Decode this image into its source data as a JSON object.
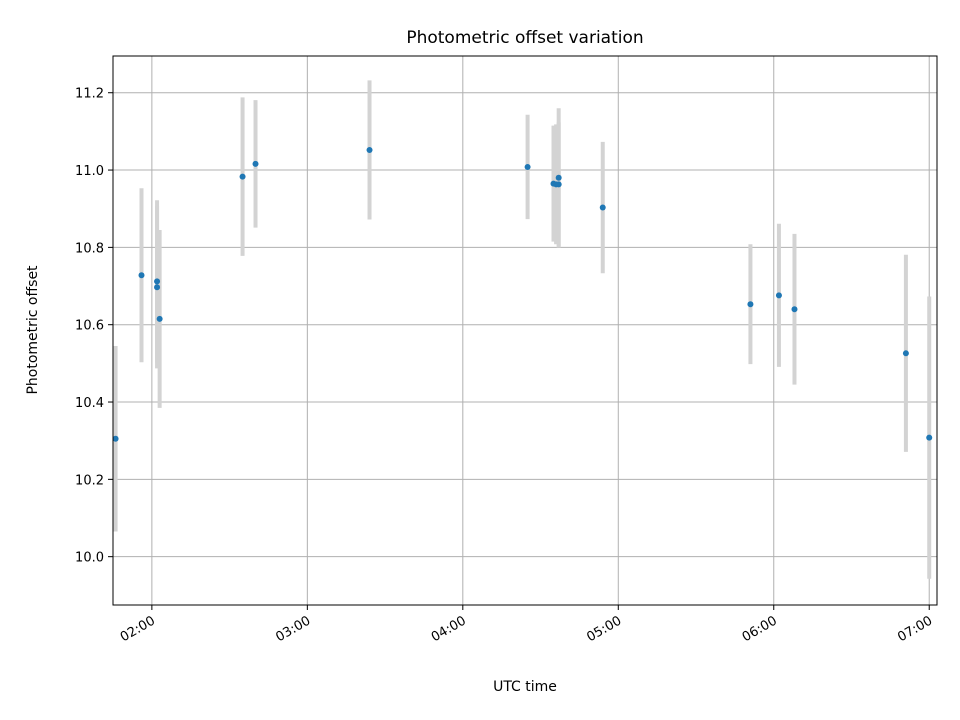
{
  "chart_data": {
    "type": "scatter",
    "title": "Photometric offset variation",
    "xlabel": "UTC time",
    "ylabel": "Photometric offset",
    "x_unit": "time (HH:MM UTC)",
    "xlim": [
      "01:45",
      "07:03"
    ],
    "ylim": [
      9.875,
      11.295
    ],
    "xticks": [
      "02:00",
      "03:00",
      "04:00",
      "05:00",
      "06:00",
      "07:00"
    ],
    "yticks": [
      "10.0",
      "10.2",
      "10.4",
      "10.6",
      "10.8",
      "11.0",
      "11.2"
    ],
    "grid": true,
    "legend": "none",
    "colors": {
      "point": "#1f77b4",
      "errorbar": "#d3d3d3",
      "grid": "#b0b0b0"
    },
    "series": [
      {
        "points": [
          {
            "x": "01:46",
            "y": 10.305,
            "yerr": 0.24
          },
          {
            "x": "01:56",
            "y": 10.728,
            "yerr": 0.225
          },
          {
            "x": "02:02",
            "y": 10.712,
            "yerr": 0.21
          },
          {
            "x": "02:02",
            "y": 10.697,
            "yerr": 0.21
          },
          {
            "x": "02:03",
            "y": 10.615,
            "yerr": 0.23
          },
          {
            "x": "02:35",
            "y": 10.983,
            "yerr": 0.205
          },
          {
            "x": "02:40",
            "y": 11.016,
            "yerr": 0.165
          },
          {
            "x": "03:24",
            "y": 11.052,
            "yerr": 0.18
          },
          {
            "x": "04:25",
            "y": 11.008,
            "yerr": 0.135
          },
          {
            "x": "04:35",
            "y": 10.965,
            "yerr": 0.15
          },
          {
            "x": "04:36",
            "y": 10.963,
            "yerr": 0.155
          },
          {
            "x": "04:37",
            "y": 10.963,
            "yerr": 0.16
          },
          {
            "x": "04:37",
            "y": 10.98,
            "yerr": 0.18
          },
          {
            "x": "04:54",
            "y": 10.903,
            "yerr": 0.17
          },
          {
            "x": "05:51",
            "y": 10.653,
            "yerr": 0.155
          },
          {
            "x": "06:02",
            "y": 10.676,
            "yerr": 0.185
          },
          {
            "x": "06:08",
            "y": 10.64,
            "yerr": 0.195
          },
          {
            "x": "06:51",
            "y": 10.526,
            "yerr": 0.255
          },
          {
            "x": "07:00",
            "y": 10.308,
            "yerr": 0.365
          }
        ]
      }
    ]
  }
}
